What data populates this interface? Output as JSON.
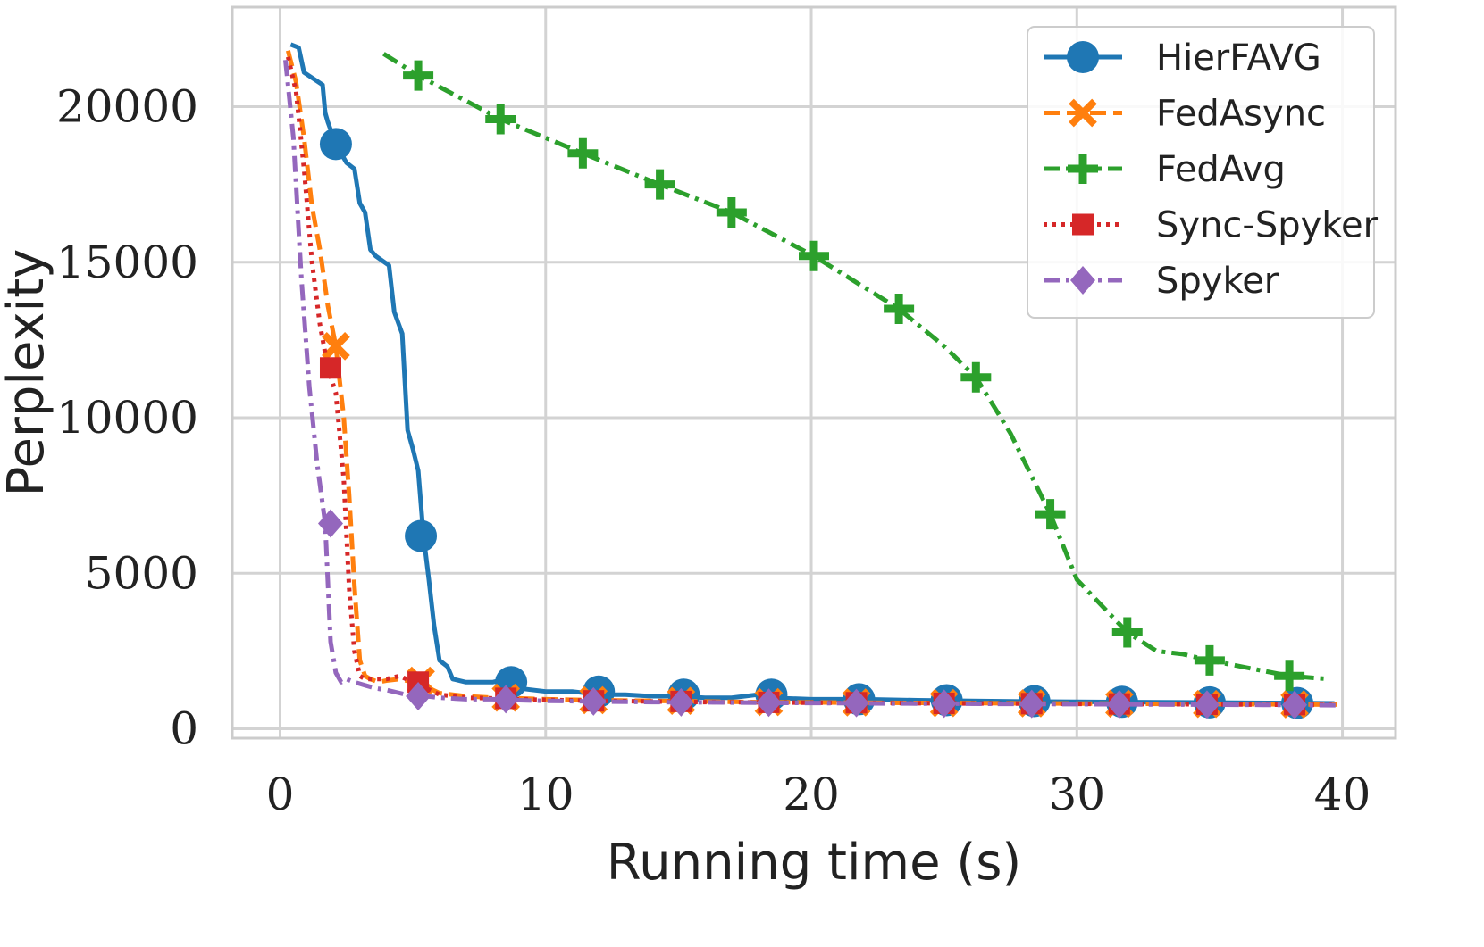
{
  "chart_data": {
    "type": "line",
    "title": "",
    "xlabel": "Running time (s)",
    "ylabel": "Perplexity",
    "xlim": [
      -1.8,
      42
    ],
    "ylim": [
      -300,
      23200
    ],
    "x_ticks": [
      0,
      10,
      20,
      30,
      40
    ],
    "y_ticks": [
      0,
      5000,
      10000,
      15000,
      20000
    ],
    "x_tick_labels": [
      "0",
      "10",
      "20",
      "30",
      "40"
    ],
    "y_tick_labels": [
      "0",
      "5000",
      "10000",
      "15000",
      "20000"
    ],
    "grid": true,
    "legend_position": "top-right",
    "series": [
      {
        "name": "HierFAVG",
        "color": "#1f77b4",
        "dash": "solid",
        "marker": "circle",
        "x": [
          0.4,
          0.7,
          0.9,
          1.6,
          1.7,
          1.8,
          2.1,
          2.5,
          2.8,
          3.0,
          3.2,
          3.4,
          3.6,
          4.1,
          4.3,
          4.6,
          4.8,
          5.0,
          5.2,
          5.4,
          5.6,
          5.8,
          6.0,
          6.3,
          6.5,
          7.0,
          7.5,
          8.0,
          8.5,
          9.0,
          10.0,
          11.0,
          12.0,
          13.0,
          14.0,
          15.0,
          16.0,
          17.0,
          17.5,
          18.0,
          18.5,
          20.0,
          22.0,
          24.0,
          26.0,
          28.0,
          30.0,
          32.0,
          34.0,
          36.0,
          38.0,
          39.7
        ],
        "y": [
          22000,
          21900,
          21100,
          20700,
          19800,
          19500,
          18800,
          18200,
          18000,
          16900,
          16600,
          15400,
          15200,
          14900,
          13400,
          12700,
          9600,
          9000,
          8300,
          6200,
          4800,
          3300,
          2200,
          2000,
          1600,
          1500,
          1500,
          1500,
          1600,
          1300,
          1200,
          1200,
          1100,
          1100,
          1050,
          1050,
          1000,
          1000,
          1050,
          1100,
          1000,
          950,
          950,
          920,
          900,
          880,
          870,
          860,
          850,
          840,
          830,
          820
        ],
        "marker_x": [
          2.1,
          5.3,
          8.7,
          12.0,
          15.2,
          18.5,
          21.8,
          25.1,
          28.4,
          31.7,
          35.0,
          38.3
        ],
        "marker_y": [
          18800,
          6200,
          1500,
          1200,
          1100,
          1100,
          950,
          920,
          890,
          870,
          850,
          830
        ]
      },
      {
        "name": "FedAsync",
        "color": "#ff7f0e",
        "dash": "dashed",
        "marker": "x",
        "x": [
          0.3,
          0.6,
          0.9,
          1.2,
          1.5,
          1.8,
          2.1,
          2.4,
          2.6,
          2.8,
          3.0,
          3.2,
          3.4,
          3.7,
          4.0,
          4.5,
          5.0,
          5.5,
          6.0,
          7.0,
          8.0,
          9.0,
          10.0,
          12.0,
          14.0,
          16.0,
          18.0,
          20.0,
          22.0,
          25.0,
          28.0,
          31.0,
          34.0,
          37.0,
          39.8
        ],
        "y": [
          21800,
          20800,
          19000,
          16800,
          15400,
          13600,
          12300,
          10000,
          7500,
          4600,
          2200,
          1700,
          1600,
          1500,
          1550,
          1600,
          1500,
          1350,
          1150,
          1050,
          1000,
          980,
          950,
          920,
          900,
          880,
          860,
          850,
          840,
          830,
          820,
          810,
          800,
          790,
          780
        ],
        "marker_x": [
          2.1,
          5.3,
          8.5,
          11.8,
          15.1,
          18.4,
          21.7,
          25.0,
          28.3,
          31.6,
          34.9,
          38.2
        ],
        "marker_y": [
          12300,
          1550,
          1000,
          920,
          900,
          860,
          850,
          830,
          820,
          810,
          800,
          790
        ]
      },
      {
        "name": "FedAvg",
        "color": "#2ca02c",
        "dash": "dashdot",
        "marker": "plus",
        "x": [
          3.9,
          5.2,
          8.3,
          11.4,
          14.3,
          17.0,
          20.1,
          23.3,
          25.0,
          26.2,
          27.5,
          29.0,
          30.0,
          31.9,
          33.0,
          34.0,
          35.0,
          38.0,
          39.5
        ],
        "y": [
          21700,
          21000,
          19600,
          18500,
          17500,
          16600,
          15200,
          13500,
          12300,
          11300,
          9500,
          6900,
          4800,
          3100,
          2500,
          2400,
          2200,
          1700,
          1600
        ],
        "marker_x": [
          5.2,
          8.3,
          11.4,
          14.3,
          17.0,
          20.1,
          23.3,
          26.2,
          29.0,
          31.9,
          35.0,
          38.0
        ],
        "marker_y": [
          21000,
          19600,
          18500,
          17500,
          16600,
          15200,
          13500,
          11300,
          6900,
          3100,
          2200,
          1700
        ]
      },
      {
        "name": "Sync-Spyker",
        "color": "#d62728",
        "dash": "dotted",
        "marker": "square",
        "x": [
          0.3,
          0.6,
          0.9,
          1.2,
          1.5,
          1.8,
          2.1,
          2.4,
          2.6,
          2.8,
          3.0,
          3.2,
          3.5,
          4.0,
          4.5,
          5.0,
          5.5,
          6.0,
          7.0,
          8.0,
          9.0,
          10.0,
          12.0,
          14.0,
          16.0,
          18.0,
          20.0,
          22.0,
          25.0,
          28.0,
          31.0,
          34.0,
          37.0,
          39.8
        ],
        "y": [
          21600,
          20500,
          18000,
          15000,
          13000,
          11600,
          10800,
          8000,
          4500,
          2500,
          1700,
          1600,
          1600,
          1600,
          1700,
          1500,
          1300,
          1100,
          1000,
          980,
          950,
          930,
          900,
          880,
          860,
          850,
          840,
          830,
          820,
          810,
          800,
          790,
          780,
          770
        ],
        "marker_x": [
          1.9,
          5.2,
          8.5,
          11.8,
          15.1,
          18.4,
          21.7,
          25.0,
          28.3,
          31.6,
          34.9,
          38.2
        ],
        "marker_y": [
          11600,
          1500,
          980,
          900,
          880,
          850,
          840,
          820,
          810,
          800,
          790,
          780
        ]
      },
      {
        "name": "Spyker",
        "color": "#9467bd",
        "dash": "dashdot",
        "marker": "diamond",
        "x": [
          0.2,
          0.5,
          0.8,
          1.1,
          1.4,
          1.7,
          1.9,
          2.1,
          2.3,
          2.5,
          2.8,
          3.2,
          3.6,
          4.0,
          4.5,
          5.0,
          5.5,
          6.0,
          7.0,
          8.0,
          9.0,
          10.0,
          12.0,
          14.0,
          16.0,
          18.0,
          20.0,
          22.0,
          25.0,
          28.0,
          31.0,
          34.0,
          37.0,
          39.8
        ],
        "y": [
          21500,
          19000,
          14500,
          11000,
          8500,
          6600,
          2800,
          1800,
          1500,
          1600,
          1500,
          1400,
          1300,
          1250,
          1150,
          1050,
          1050,
          1000,
          950,
          950,
          920,
          900,
          880,
          860,
          850,
          840,
          830,
          820,
          810,
          800,
          790,
          780,
          770,
          760
        ],
        "marker_x": [
          1.9,
          5.2,
          8.5,
          11.8,
          15.1,
          18.4,
          21.7,
          25.0,
          28.3,
          31.6,
          34.9,
          38.2
        ],
        "marker_y": [
          6600,
          1050,
          950,
          880,
          850,
          840,
          830,
          810,
          800,
          790,
          780,
          770
        ]
      }
    ]
  }
}
